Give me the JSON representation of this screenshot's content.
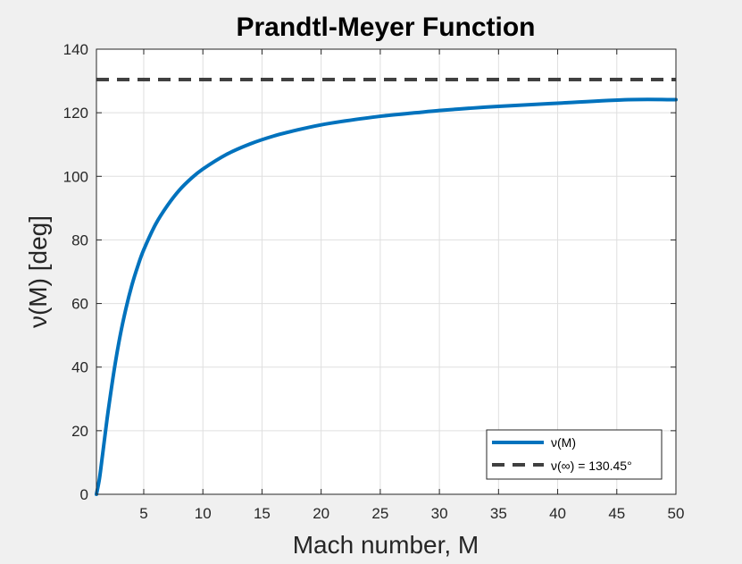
{
  "chart_data": {
    "type": "line",
    "title": "Prandtl-Meyer Function",
    "xlabel": "Mach number, M",
    "ylabel": "ν(M) [deg]",
    "xlim": [
      1,
      50
    ],
    "ylim": [
      0,
      140
    ],
    "xticks": [
      5,
      10,
      15,
      20,
      25,
      30,
      35,
      40,
      45,
      50
    ],
    "yticks": [
      0,
      20,
      40,
      60,
      80,
      100,
      120,
      140
    ],
    "grid": true,
    "legend_position": "bottom-right",
    "colors": {
      "curve": "#0072BD",
      "asymptote": "#404040",
      "grid": "#dfdfdf",
      "axes_bg": "#ffffff",
      "figure_bg": "#f0f0f0"
    },
    "series": [
      {
        "name": "ν(M)",
        "style": "solid",
        "x": [
          1,
          1.25,
          1.5,
          1.75,
          2,
          2.5,
          3,
          3.5,
          4,
          4.5,
          5,
          6,
          7,
          8,
          9,
          10,
          12,
          14,
          16,
          18,
          20,
          22,
          25,
          28,
          30,
          32.5,
          35,
          40,
          46,
          50
        ],
        "y": [
          0,
          4.8,
          11.9,
          19.3,
          26.4,
          39.1,
          49.8,
          58.5,
          65.8,
          71.8,
          76.9,
          84.9,
          90.8,
          95.6,
          99.3,
          102.3,
          106.9,
          110.2,
          112.7,
          114.6,
          116.2,
          117.4,
          118.9,
          120.0,
          120.7,
          121.4,
          122.0,
          123.0,
          124.1,
          124.1
        ]
      },
      {
        "name": "ν(∞) = 130.45°",
        "style": "dashed",
        "x": [
          1,
          50
        ],
        "y": [
          130.45,
          130.45
        ]
      }
    ]
  }
}
